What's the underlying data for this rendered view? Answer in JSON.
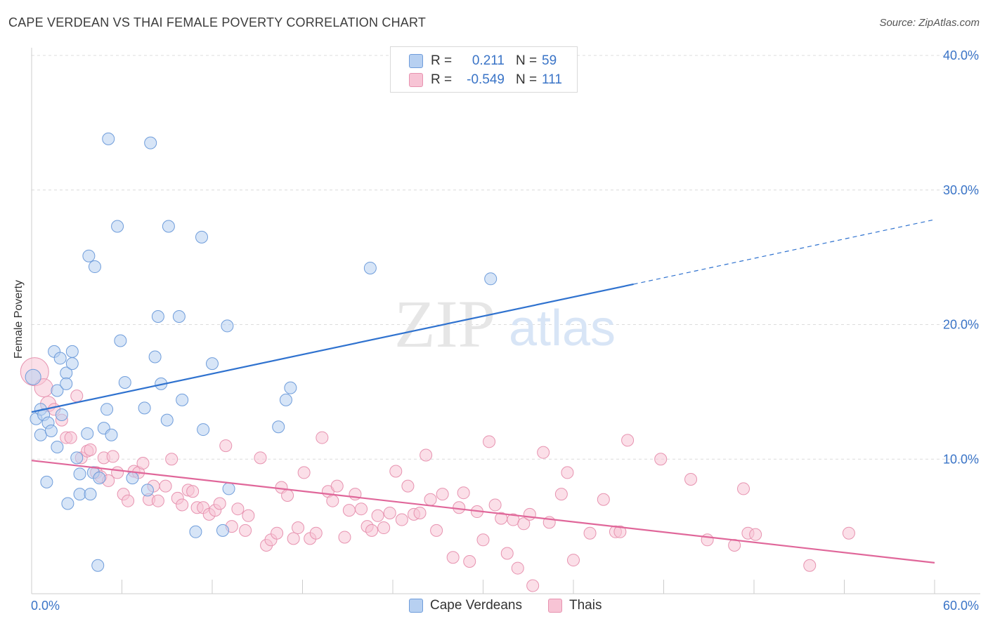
{
  "header": {
    "title": "CAPE VERDEAN VS THAI FEMALE POVERTY CORRELATION CHART",
    "source": "Source: ZipAtlas.com"
  },
  "watermark": {
    "zip": "ZIP",
    "atlas": "atlas"
  },
  "legend": {
    "rows": [
      {
        "r_label": "R =",
        "r_value": "0.211",
        "n_label": "N =",
        "n_value": "59"
      },
      {
        "r_label": "R =",
        "r_value": "-0.549",
        "n_label": "N =",
        "n_value": "111"
      }
    ]
  },
  "bottom_legend": {
    "series1": "Cape Verdeans",
    "series2": "Thais"
  },
  "colors": {
    "blue_fill": "#b7d0f1",
    "blue_stroke": "#6f9ddb",
    "blue_line": "#2f72cf",
    "pink_fill": "#f7c4d5",
    "pink_stroke": "#e793b0",
    "pink_line": "#e0679a",
    "tick_text": "#3a74c7",
    "grid": "#dcdcdc"
  },
  "chart_data": {
    "type": "scatter",
    "title": "CAPE VERDEAN VS THAI FEMALE POVERTY CORRELATION CHART",
    "xlabel": "",
    "ylabel": "Female Poverty",
    "xlim": [
      0,
      60
    ],
    "ylim": [
      0,
      40
    ],
    "x_tick_labels": [
      "0.0%",
      "60.0%"
    ],
    "y_ticks": [
      10,
      20,
      30,
      40
    ],
    "y_tick_labels": [
      "10.0%",
      "20.0%",
      "30.0%",
      "40.0%"
    ],
    "grid": true,
    "legend_position": "top-center",
    "series": [
      {
        "name": "Cape Verdeans",
        "color": "#6f9ddb",
        "r": 0.211,
        "n": 59,
        "trend": {
          "x": [
            0,
            40,
            60
          ],
          "y": [
            13.5,
            23.0,
            27.8
          ],
          "solid_until": 40
        },
        "points": [
          [
            0.1,
            16.1
          ],
          [
            0.3,
            13.0
          ],
          [
            0.6,
            13.7
          ],
          [
            0.6,
            11.8
          ],
          [
            0.8,
            13.3
          ],
          [
            1.0,
            8.3
          ],
          [
            1.1,
            12.7
          ],
          [
            1.3,
            12.1
          ],
          [
            1.5,
            18.0
          ],
          [
            1.7,
            15.1
          ],
          [
            1.7,
            10.9
          ],
          [
            1.9,
            17.5
          ],
          [
            2.0,
            13.3
          ],
          [
            2.3,
            16.4
          ],
          [
            2.3,
            15.6
          ],
          [
            2.4,
            6.7
          ],
          [
            2.7,
            18.0
          ],
          [
            2.7,
            17.1
          ],
          [
            3.0,
            10.1
          ],
          [
            3.2,
            8.9
          ],
          [
            3.2,
            7.4
          ],
          [
            3.7,
            11.9
          ],
          [
            3.8,
            25.1
          ],
          [
            3.9,
            7.4
          ],
          [
            4.1,
            9.0
          ],
          [
            4.2,
            24.3
          ],
          [
            4.5,
            8.6
          ],
          [
            4.4,
            2.1
          ],
          [
            4.8,
            12.3
          ],
          [
            5.0,
            13.7
          ],
          [
            5.1,
            33.8
          ],
          [
            5.3,
            11.8
          ],
          [
            5.7,
            27.3
          ],
          [
            5.9,
            18.8
          ],
          [
            6.2,
            15.7
          ],
          [
            6.7,
            8.6
          ],
          [
            7.5,
            13.8
          ],
          [
            7.7,
            7.7
          ],
          [
            7.9,
            33.5
          ],
          [
            8.2,
            17.6
          ],
          [
            8.4,
            20.6
          ],
          [
            8.6,
            15.6
          ],
          [
            9.0,
            12.9
          ],
          [
            9.1,
            27.3
          ],
          [
            9.8,
            20.6
          ],
          [
            10.0,
            14.4
          ],
          [
            10.9,
            4.6
          ],
          [
            11.3,
            26.5
          ],
          [
            11.4,
            12.2
          ],
          [
            12.0,
            17.1
          ],
          [
            12.7,
            4.7
          ],
          [
            13.1,
            7.8
          ],
          [
            13.0,
            19.9
          ],
          [
            16.9,
            14.4
          ],
          [
            17.2,
            15.3
          ],
          [
            16.4,
            12.4
          ],
          [
            22.5,
            24.2
          ],
          [
            30.5,
            23.4
          ]
        ]
      },
      {
        "name": "Thais",
        "color": "#e793b0",
        "r": -0.549,
        "n": 111,
        "trend": {
          "x": [
            0,
            60
          ],
          "y": [
            9.9,
            2.3
          ]
        },
        "points": [
          [
            0.2,
            16.5
          ],
          [
            0.8,
            15.3
          ],
          [
            1.1,
            14.1
          ],
          [
            1.5,
            13.7
          ],
          [
            2.0,
            12.9
          ],
          [
            2.3,
            11.6
          ],
          [
            2.6,
            11.6
          ],
          [
            3.0,
            14.7
          ],
          [
            3.3,
            10.1
          ],
          [
            3.7,
            10.6
          ],
          [
            3.9,
            10.7
          ],
          [
            4.3,
            9.0
          ],
          [
            4.6,
            8.7
          ],
          [
            4.8,
            10.1
          ],
          [
            5.1,
            8.4
          ],
          [
            5.4,
            10.2
          ],
          [
            5.7,
            9.0
          ],
          [
            6.1,
            7.4
          ],
          [
            6.4,
            6.9
          ],
          [
            6.8,
            9.1
          ],
          [
            7.1,
            9.0
          ],
          [
            7.4,
            9.7
          ],
          [
            7.8,
            7.0
          ],
          [
            8.1,
            8.0
          ],
          [
            8.4,
            6.9
          ],
          [
            8.9,
            8.0
          ],
          [
            9.3,
            10.0
          ],
          [
            9.7,
            7.1
          ],
          [
            10.0,
            6.6
          ],
          [
            10.4,
            7.7
          ],
          [
            10.7,
            7.6
          ],
          [
            11.0,
            6.4
          ],
          [
            11.4,
            6.4
          ],
          [
            11.8,
            5.9
          ],
          [
            12.2,
            6.2
          ],
          [
            12.5,
            6.7
          ],
          [
            12.9,
            11.0
          ],
          [
            13.3,
            5.0
          ],
          [
            13.7,
            6.3
          ],
          [
            14.2,
            4.7
          ],
          [
            14.4,
            5.8
          ],
          [
            15.2,
            10.1
          ],
          [
            15.6,
            3.6
          ],
          [
            15.9,
            4.0
          ],
          [
            16.3,
            4.5
          ],
          [
            16.6,
            7.9
          ],
          [
            17.0,
            7.3
          ],
          [
            17.4,
            4.1
          ],
          [
            17.7,
            4.9
          ],
          [
            18.1,
            9.0
          ],
          [
            18.5,
            4.1
          ],
          [
            18.9,
            4.5
          ],
          [
            19.3,
            11.6
          ],
          [
            19.7,
            7.6
          ],
          [
            20.0,
            6.9
          ],
          [
            20.3,
            8.0
          ],
          [
            20.8,
            4.2
          ],
          [
            21.1,
            6.2
          ],
          [
            21.5,
            7.4
          ],
          [
            21.9,
            6.3
          ],
          [
            22.3,
            5.0
          ],
          [
            22.6,
            4.7
          ],
          [
            23.0,
            5.8
          ],
          [
            23.4,
            4.9
          ],
          [
            23.8,
            6.0
          ],
          [
            24.2,
            9.1
          ],
          [
            24.6,
            5.5
          ],
          [
            25.0,
            8.0
          ],
          [
            25.4,
            5.9
          ],
          [
            25.8,
            6.0
          ],
          [
            26.2,
            10.3
          ],
          [
            26.5,
            7.0
          ],
          [
            26.9,
            4.7
          ],
          [
            27.3,
            7.4
          ],
          [
            28.0,
            2.7
          ],
          [
            28.4,
            6.4
          ],
          [
            28.7,
            7.5
          ],
          [
            29.1,
            2.4
          ],
          [
            29.6,
            6.1
          ],
          [
            30.0,
            4.0
          ],
          [
            30.4,
            11.3
          ],
          [
            30.8,
            6.6
          ],
          [
            31.2,
            5.6
          ],
          [
            31.6,
            3.0
          ],
          [
            32.0,
            5.5
          ],
          [
            32.3,
            1.9
          ],
          [
            32.7,
            5.2
          ],
          [
            33.1,
            5.9
          ],
          [
            33.3,
            0.6
          ],
          [
            34.0,
            10.5
          ],
          [
            34.4,
            5.3
          ],
          [
            35.2,
            7.4
          ],
          [
            35.6,
            9.0
          ],
          [
            36.0,
            2.5
          ],
          [
            37.1,
            4.5
          ],
          [
            38.0,
            7.0
          ],
          [
            38.8,
            4.6
          ],
          [
            39.1,
            4.6
          ],
          [
            39.6,
            11.4
          ],
          [
            41.8,
            10.0
          ],
          [
            43.8,
            8.5
          ],
          [
            44.9,
            4.0
          ],
          [
            46.7,
            3.6
          ],
          [
            47.3,
            7.8
          ],
          [
            47.6,
            4.5
          ],
          [
            48.1,
            4.4
          ],
          [
            51.7,
            2.1
          ],
          [
            54.3,
            4.5
          ]
        ]
      }
    ]
  }
}
